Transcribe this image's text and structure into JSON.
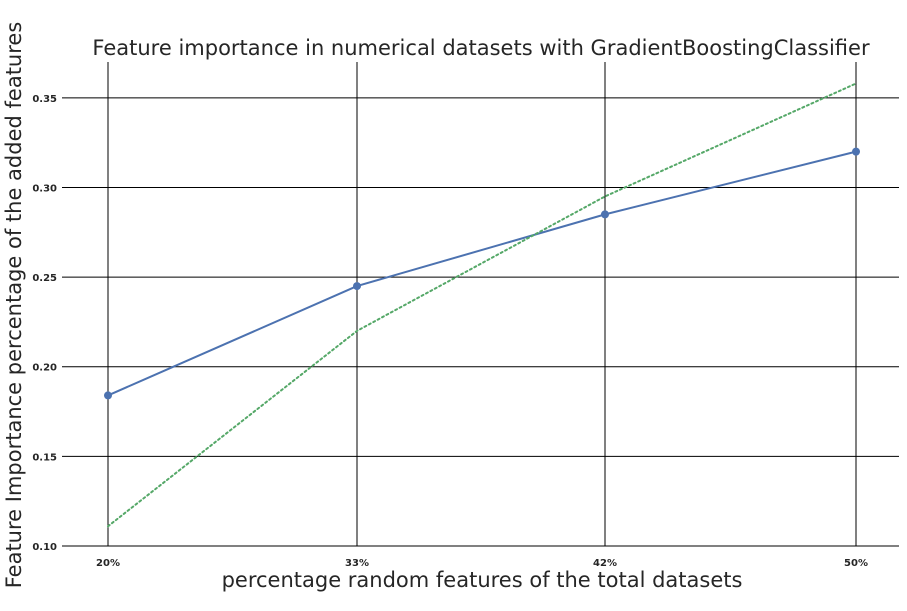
{
  "chart_data": {
    "type": "line",
    "title": "Feature importance in numerical datasets with GradientBoostingClassifier",
    "xlabel": "percentage random features of the total datasets",
    "ylabel": "Feature Importance percentage of the added features",
    "categories": [
      "20%",
      "33%",
      "42%",
      "50%"
    ],
    "ylim": [
      0.1,
      0.37
    ],
    "yticks": [
      0.1,
      0.15,
      0.2,
      0.25,
      0.3,
      0.35
    ],
    "ytick_labels": [
      "0.10",
      "0.15",
      "0.20",
      "0.25",
      "0.30",
      "0.35"
    ],
    "grid": true,
    "series": [
      {
        "values": [
          0.184,
          0.245,
          0.285,
          0.32
        ],
        "color": "#4c72b0",
        "style": "solid",
        "markers": true
      },
      {
        "values": [
          0.111,
          0.22,
          0.295,
          0.358
        ],
        "color": "#55a868",
        "style": "dotted",
        "markers": false
      }
    ]
  }
}
